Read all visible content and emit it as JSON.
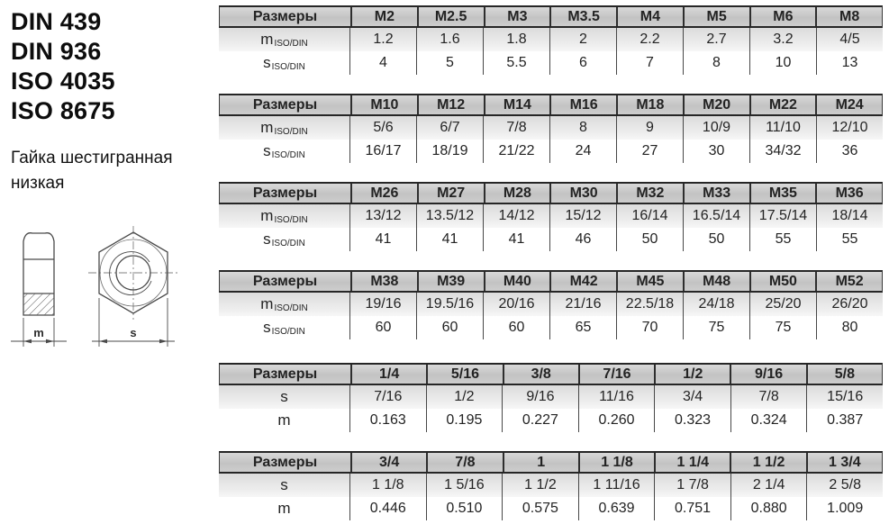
{
  "standards": [
    "DIN 439",
    "DIN 936",
    "ISO 4035",
    "ISO 8675"
  ],
  "product": {
    "name_line1": "Гайка шестигранная",
    "name_line2": "низкая"
  },
  "diagram": {
    "height_dim_label": "m",
    "width_dim_label": "s"
  },
  "tables": [
    {
      "header_label": "Размеры",
      "columns": [
        "M2",
        "M2.5",
        "M3",
        "M3.5",
        "M4",
        "M5",
        "M6",
        "M8"
      ],
      "rows": [
        {
          "label_main": "m",
          "label_sub": "ISO/DIN",
          "values": [
            "1.2",
            "1.6",
            "1.8",
            "2",
            "2.2",
            "2.7",
            "3.2",
            "4/5"
          ]
        },
        {
          "label_main": "s",
          "label_sub": "ISO/DIN",
          "values": [
            "4",
            "5",
            "5.5",
            "6",
            "7",
            "8",
            "10",
            "13"
          ]
        }
      ]
    },
    {
      "header_label": "Размеры",
      "columns": [
        "M10",
        "M12",
        "M14",
        "M16",
        "M18",
        "M20",
        "M22",
        "M24"
      ],
      "rows": [
        {
          "label_main": "m",
          "label_sub": "ISO/DIN",
          "values": [
            "5/6",
            "6/7",
            "7/8",
            "8",
            "9",
            "10/9",
            "11/10",
            "12/10"
          ]
        },
        {
          "label_main": "s",
          "label_sub": "ISO/DIN",
          "values": [
            "16/17",
            "18/19",
            "21/22",
            "24",
            "27",
            "30",
            "34/32",
            "36"
          ]
        }
      ]
    },
    {
      "header_label": "Размеры",
      "columns": [
        "M26",
        "M27",
        "M28",
        "M30",
        "M32",
        "M33",
        "M35",
        "M36"
      ],
      "rows": [
        {
          "label_main": "m",
          "label_sub": "ISO/DIN",
          "values": [
            "13/12",
            "13.5/12",
            "14/12",
            "15/12",
            "16/14",
            "16.5/14",
            "17.5/14",
            "18/14"
          ]
        },
        {
          "label_main": "s",
          "label_sub": "ISO/DIN",
          "values": [
            "41",
            "41",
            "41",
            "46",
            "50",
            "50",
            "55",
            "55"
          ]
        }
      ]
    },
    {
      "header_label": "Размеры",
      "columns": [
        "M38",
        "M39",
        "M40",
        "M42",
        "M45",
        "M48",
        "M50",
        "M52"
      ],
      "rows": [
        {
          "label_main": "m",
          "label_sub": "ISO/DIN",
          "values": [
            "19/16",
            "19.5/16",
            "20/16",
            "21/16",
            "22.5/18",
            "24/18",
            "25/20",
            "26/20"
          ]
        },
        {
          "label_main": "s",
          "label_sub": "ISO/DIN",
          "values": [
            "60",
            "60",
            "60",
            "65",
            "70",
            "75",
            "75",
            "80"
          ]
        }
      ]
    },
    {
      "header_label": "Размеры",
      "columns": [
        "1/4",
        "5/16",
        "3/8",
        "7/16",
        "1/2",
        "9/16",
        "5/8"
      ],
      "rows": [
        {
          "label_main": "s",
          "label_sub": "",
          "values": [
            "7/16",
            "1/2",
            "9/16",
            "11/16",
            "3/4",
            "7/8",
            "15/16"
          ]
        },
        {
          "label_main": "m",
          "label_sub": "",
          "values": [
            "0.163",
            "0.195",
            "0.227",
            "0.260",
            "0.323",
            "0.324",
            "0.387"
          ]
        }
      ]
    },
    {
      "header_label": "Размеры",
      "columns": [
        "3/4",
        "7/8",
        "1",
        "1 1/8",
        "1 1/4",
        "1 1/2",
        "1 3/4"
      ],
      "rows": [
        {
          "label_main": "s",
          "label_sub": "",
          "values": [
            "1 1/8",
            "1 5/16",
            "1 1/2",
            "1 11/16",
            "1 7/8",
            "2 1/4",
            "2 5/8"
          ]
        },
        {
          "label_main": "m",
          "label_sub": "",
          "values": [
            "0.446",
            "0.510",
            "0.575",
            "0.639",
            "0.751",
            "0.880",
            "1.009"
          ]
        }
      ]
    }
  ]
}
